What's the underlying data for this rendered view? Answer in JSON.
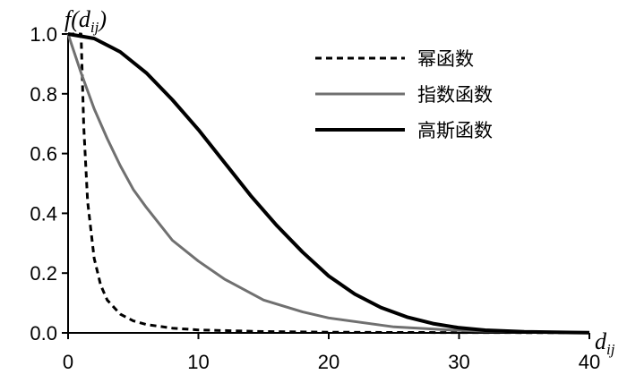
{
  "chart_data": {
    "type": "line",
    "title": "",
    "ylabel": "f(dij)",
    "xlabel": "dij",
    "xlim": [
      0,
      40
    ],
    "ylim": [
      0,
      1
    ],
    "x_ticks": [
      "0",
      "10",
      "20",
      "30",
      "40"
    ],
    "y_ticks": [
      "0.0",
      "0.2",
      "0.4",
      "0.6",
      "0.8",
      "1.0"
    ],
    "grid": false,
    "legend_position": "top-right",
    "series": [
      {
        "name": "幂函数",
        "style": "dashed",
        "color": "#000000",
        "x": [
          0,
          1.0,
          1.2,
          1.5,
          2,
          2.5,
          3,
          4,
          5,
          6,
          8,
          10,
          15,
          20,
          25,
          30,
          35,
          40
        ],
        "y": [
          1.0,
          1.0,
          0.69,
          0.44,
          0.25,
          0.16,
          0.11,
          0.063,
          0.04,
          0.028,
          0.016,
          0.01,
          0.0044,
          0.0025,
          0.0016,
          0.0011,
          0.0008,
          0.0006
        ]
      },
      {
        "name": "指数函数",
        "style": "solid",
        "color": "#707070",
        "x": [
          0,
          1,
          2,
          3,
          4,
          5,
          6,
          8,
          10,
          12,
          15,
          18,
          20,
          25,
          30,
          35,
          40
        ],
        "y": [
          1.0,
          0.87,
          0.75,
          0.65,
          0.56,
          0.48,
          0.42,
          0.31,
          0.24,
          0.18,
          0.11,
          0.07,
          0.05,
          0.02,
          0.008,
          0.003,
          0.001
        ]
      },
      {
        "name": "高斯函数",
        "style": "solid",
        "color": "#000000",
        "x": [
          0,
          2,
          4,
          6,
          8,
          10,
          12,
          14,
          16,
          18,
          20,
          22,
          24,
          26,
          28,
          30,
          32,
          35,
          40
        ],
        "y": [
          1.0,
          0.985,
          0.94,
          0.87,
          0.78,
          0.68,
          0.57,
          0.46,
          0.36,
          0.27,
          0.19,
          0.13,
          0.085,
          0.053,
          0.031,
          0.017,
          0.009,
          0.004,
          0.0005
        ]
      }
    ]
  }
}
